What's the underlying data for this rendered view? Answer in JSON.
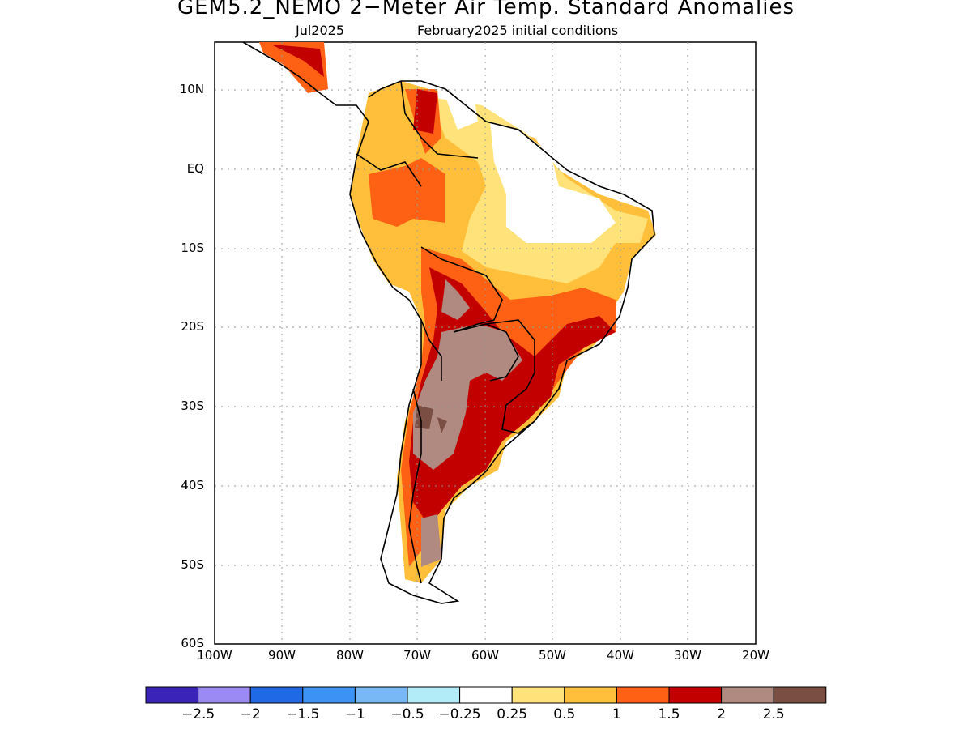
{
  "title": "GEM5.2_NEMO 2−Meter Air Temp. Standard Anomalies",
  "subtitle_left": "Jul2025",
  "subtitle_right": "February2025 initial conditions",
  "lat_labels": [
    "10N",
    "EQ",
    "10S",
    "20S",
    "30S",
    "40S",
    "50S",
    "60S"
  ],
  "lon_labels": [
    "100W",
    "90W",
    "80W",
    "70W",
    "60W",
    "50W",
    "40W",
    "30W",
    "20W"
  ],
  "colorbar": {
    "colors": [
      "#3a23b9",
      "#9b8af3",
      "#1f68e6",
      "#3c93f5",
      "#78b8f7",
      "#b1ecf8",
      "#ffffff",
      "#ffe27a",
      "#ffbf3a",
      "#ff6114",
      "#c30000",
      "#b08a80",
      "#7a4e42"
    ],
    "labels": [
      "−2.5",
      "−2",
      "−1.5",
      "−1",
      "−0.5",
      "−0.25",
      "0.25",
      "0.5",
      "1",
      "1.5",
      "2",
      "2.5"
    ]
  }
}
